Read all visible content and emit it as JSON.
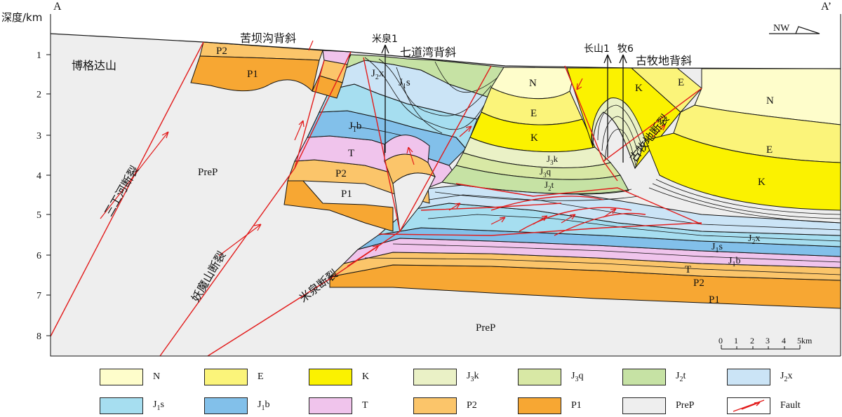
{
  "axis": {
    "ylabel": "深度/km",
    "ticks": [
      "1",
      "2",
      "3",
      "4",
      "5",
      "6",
      "7",
      "8"
    ]
  },
  "section_ends": {
    "left": "A",
    "right": "A’"
  },
  "direction": "NW",
  "scale_bar": {
    "ticks": [
      "0",
      "1",
      "2",
      "3",
      "4",
      "5km"
    ]
  },
  "place_labels": {
    "bogeda": "博格达山",
    "kubagou": "苦坝沟背斜",
    "qidaowan": "七道湾背斜",
    "gumudi": "古牧地背斜"
  },
  "wells": {
    "miquan": "米泉1",
    "changshan": "长山1",
    "mu6": "牧6"
  },
  "faults": {
    "sangonghe": "三工河断裂",
    "yaomoshan": "妖魔山断裂",
    "miquan": "米泉断裂",
    "gumudi": "古牧地断裂"
  },
  "unit_labels": {
    "prep_main": "PreP",
    "prep_bottom": "PreP",
    "p2_top": "P2",
    "p1_top": "P1",
    "j2x_mid": "J",
    "j2x_mid_sub": "2",
    "j2x_mid_suf": "x",
    "j1s_mid": "J",
    "j1s_mid_sub": "1",
    "j1s_mid_suf": "s",
    "j1b_mid": "J",
    "j1b_mid_sub": "1",
    "j1b_mid_suf": "b",
    "t_mid": "T",
    "p2_mid": "P2",
    "p1_mid": "P1",
    "n_mid": "N",
    "e_mid": "E",
    "k_mid": "K",
    "j3k_mid": "J",
    "j3k_mid_sub": "3",
    "j3k_mid_suf": "k",
    "j3q_mid": "J",
    "j3q_mid_sub": "3",
    "j3q_mid_suf": "q",
    "j2t_mid": "J",
    "j2t_mid_sub": "2",
    "j2t_mid_suf": "t",
    "k_gumu": "K",
    "e_gumu": "E",
    "n_right": "N",
    "e_right": "E",
    "k_right": "K",
    "j2x_right": "J",
    "j2x_right_sub": "2",
    "j2x_right_suf": "x",
    "j1s_right": "J",
    "j1s_right_sub": "1",
    "j1s_right_suf": "s",
    "j1b_right": "J",
    "j1b_right_sub": "1",
    "j1b_right_suf": "b",
    "t_right": "T",
    "p2_right": "P2",
    "p1_right": "P1"
  },
  "colors": {
    "N": "#fefdcb",
    "E": "#fbf47a",
    "K": "#fbf200",
    "J3k": "#eaf1c6",
    "J3q": "#d8e8a5",
    "J2t": "#c6e2a4",
    "J2x": "#cbe4f6",
    "J1s": "#a6def0",
    "J1b": "#82c0ea",
    "T": "#f0c4ec",
    "P2": "#fbc56a",
    "P1": "#f7a733",
    "PreP": "#eeeeee",
    "fault": "#e21b1b"
  },
  "legend": [
    {
      "main": "N",
      "sub": "",
      "suf": "",
      "color": "#fefdcb"
    },
    {
      "main": "E",
      "sub": "",
      "suf": "",
      "color": "#fbf47a"
    },
    {
      "main": "K",
      "sub": "",
      "suf": "",
      "color": "#fbf200"
    },
    {
      "main": "J",
      "sub": "3",
      "suf": "k",
      "color": "#eaf1c6"
    },
    {
      "main": "J",
      "sub": "3",
      "suf": "q",
      "color": "#d8e8a5"
    },
    {
      "main": "J",
      "sub": "2",
      "suf": "t",
      "color": "#c6e2a4"
    },
    {
      "main": "J",
      "sub": "2",
      "suf": "x",
      "color": "#cbe4f6"
    },
    {
      "main": "J",
      "sub": "1",
      "suf": "s",
      "color": "#a6def0"
    },
    {
      "main": "J",
      "sub": "1",
      "suf": "b",
      "color": "#82c0ea"
    },
    {
      "main": "T",
      "sub": "",
      "suf": "",
      "color": "#f0c4ec"
    },
    {
      "main": "P2",
      "sub": "",
      "suf": "",
      "color": "#fbc56a"
    },
    {
      "main": "P1",
      "sub": "",
      "suf": "",
      "color": "#f7a733"
    },
    {
      "main": "PreP",
      "sub": "",
      "suf": "",
      "color": "#eeeeee"
    },
    {
      "main": "Fault",
      "sub": "",
      "suf": "",
      "color": "fault"
    }
  ]
}
